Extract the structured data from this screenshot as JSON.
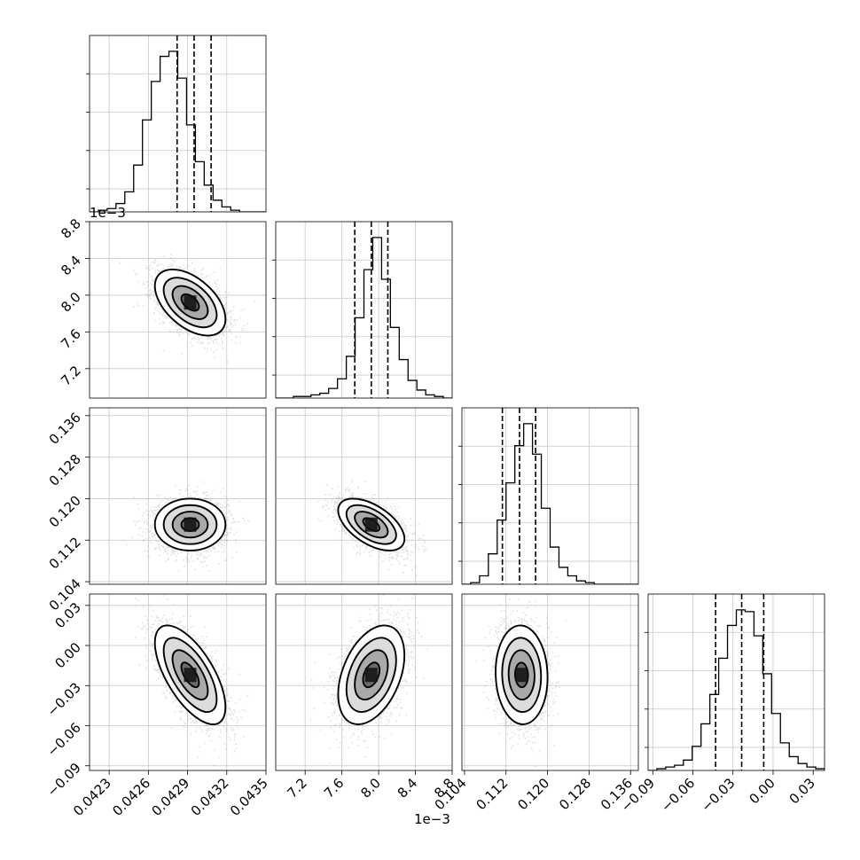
{
  "chart_data": {
    "type": "scatter",
    "title": "",
    "parameters": [
      {
        "range": [
          0.04215,
          0.0435
        ],
        "ticks": [
          "0.0423",
          "0.0426",
          "0.0429",
          "0.0432",
          "0.0435"
        ],
        "tick_values": [
          0.0423,
          0.0426,
          0.0429,
          0.0432,
          0.0435
        ],
        "offset": ""
      },
      {
        "range": [
          0.00688,
          0.0088
        ],
        "ticks": [
          "7.2",
          "7.6",
          "8.0",
          "8.4",
          "8.8"
        ],
        "tick_values": [
          0.0072,
          0.0076,
          0.008,
          0.0084,
          0.0088
        ],
        "offset": "1e−3"
      },
      {
        "range": [
          0.1035,
          0.1375
        ],
        "ticks": [
          "0.104",
          "0.112",
          "0.120",
          "0.128",
          "0.136"
        ],
        "tick_values": [
          0.104,
          0.112,
          0.12,
          0.128,
          0.136
        ],
        "offset": ""
      },
      {
        "range": [
          -0.0935,
          0.0385
        ],
        "ticks": [
          "−0.09",
          "−0.06",
          "−0.03",
          "0.00",
          "0.03"
        ],
        "tick_values": [
          -0.09,
          -0.06,
          -0.03,
          0.0,
          0.03
        ],
        "offset": ""
      }
    ],
    "means": [
      0.04292,
      0.00792,
      0.115,
      -0.022
    ],
    "stds": [
      0.000135,
      0.00018,
      0.0025,
      0.0185
    ],
    "correlations": [
      [
        1.0,
        -0.5,
        0.0,
        -0.65
      ],
      [
        -0.5,
        1.0,
        -0.55,
        0.4
      ],
      [
        0.0,
        -0.55,
        1.0,
        -0.05
      ],
      [
        -0.65,
        0.4,
        -0.05,
        1.0
      ]
    ],
    "quantiles": [
      [
        0.04282,
        0.04295,
        0.04308
      ],
      [
        0.00774,
        0.00792,
        0.0081
      ],
      [
        0.1113,
        0.1146,
        0.1177
      ],
      [
        -0.043,
        -0.0235,
        -0.007
      ]
    ],
    "histograms": [
      [
        0,
        1,
        2,
        5,
        12,
        28,
        55,
        78,
        93,
        96,
        80,
        52,
        30,
        16,
        7,
        3,
        1,
        0,
        0,
        0
      ],
      [
        0,
        0,
        1,
        1,
        2,
        3,
        6,
        12,
        26,
        50,
        80,
        100,
        74,
        44,
        24,
        11,
        5,
        2,
        1,
        0
      ],
      [
        0,
        1,
        5,
        18,
        38,
        60,
        82,
        95,
        77,
        45,
        22,
        10,
        5,
        2,
        1,
        0,
        0,
        0,
        0,
        0
      ],
      [
        0,
        1,
        2,
        3,
        6,
        14,
        27,
        44,
        65,
        84,
        93,
        92,
        78,
        56,
        33,
        16,
        8,
        4,
        2,
        1
      ]
    ],
    "grid": true,
    "contour_levels": 4
  }
}
